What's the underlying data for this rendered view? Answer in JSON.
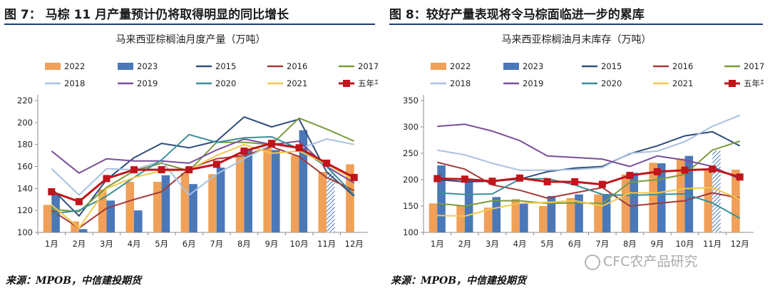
{
  "left": {
    "figure_title": "图 7：  马棕 11 月产量预计仍将取得明显的同比增长",
    "source": "来源：MPOB，中信建投期货"
  },
  "right": {
    "figure_title": "图 8：较好产量表现将令马棕面临进一步的累库",
    "source": "来源：MPOB，中信建投期货"
  },
  "watermark": "CFC农产品研究",
  "colors": {
    "2022": "#f0a058",
    "2023": "#4a78b8",
    "2015": "#2e4d7c",
    "2016": "#a33a3a",
    "2017": "#7a9b3c",
    "2018": "#a9c1e0",
    "2019": "#7a4e9a",
    "2020": "#3a8f97",
    "2021": "#f2c84a",
    "avg": "#c0151b",
    "rule": "#1f3c78"
  },
  "chart_data": [
    {
      "type": "bar",
      "title": "马来西亚棕榈油月度产量（万吨）",
      "categories": [
        "1月",
        "2月",
        "3月",
        "4月",
        "5月",
        "6月",
        "7月",
        "8月",
        "9月",
        "10月",
        "11月",
        "12月"
      ],
      "ylim": [
        100,
        220
      ],
      "yticks": [
        100,
        120,
        140,
        160,
        180,
        200,
        220
      ],
      "legend": [
        "2022",
        "2023",
        "2015",
        "2016",
        "2017",
        "2018",
        "2019",
        "2020",
        "2021",
        "五年平均"
      ],
      "bars": [
        {
          "name": "2022",
          "values": [
            125,
            110,
            139,
            146,
            146,
            154,
            153,
            169,
            177,
            170,
            155,
            162
          ]
        },
        {
          "name": "2023",
          "values": [
            135,
            103,
            129,
            120,
            152,
            144,
            159,
            176,
            175,
            193,
            155,
            null
          ]
        }
      ],
      "hatched_bar": {
        "series": "2023",
        "category": "11月"
      },
      "lines": [
        {
          "name": "2015",
          "values": [
            140,
            115,
            148,
            168,
            181,
            177,
            183,
            205,
            196,
            203,
            155,
            133
          ]
        },
        {
          "name": "2016",
          "values": [
            120,
            104,
            122,
            130,
            137,
            158,
            167,
            170,
            178,
            169,
            150,
            138
          ]
        },
        {
          "name": "2017",
          "values": [
            121,
            119,
            141,
            156,
            163,
            156,
            182,
            182,
            180,
            204,
            194,
            183
          ]
        },
        {
          "name": "2018",
          "values": [
            158,
            134,
            158,
            157,
            165,
            134,
            153,
            167,
            180,
            176,
            185,
            180
          ]
        },
        {
          "name": "2019",
          "values": [
            174,
            154,
            167,
            165,
            165,
            163,
            175,
            185,
            180,
            183,
            160,
            145
          ]
        },
        {
          "name": "2020",
          "values": [
            117,
            120,
            133,
            150,
            166,
            189,
            182,
            186,
            187,
            176,
            160,
            134
          ]
        },
        {
          "name": "2021",
          "values": [
            125,
            104,
            140,
            150,
            156,
            157,
            170,
            180,
            172,
            174,
            162,
            148
          ]
        },
        {
          "name": "五年平均",
          "values": [
            137,
            128,
            149,
            157,
            157,
            157,
            162,
            174,
            181,
            177,
            163,
            150
          ],
          "markers": true
        }
      ]
    },
    {
      "type": "bar",
      "title": "马来西亚棕榈油月末库存（万吨）",
      "categories": [
        "1月",
        "2月",
        "3月",
        "4月",
        "5月",
        "6月",
        "7月",
        "8月",
        "9月",
        "10月",
        "11月",
        "12月"
      ],
      "ylim": [
        100,
        350
      ],
      "yticks": [
        100,
        150,
        200,
        250,
        300,
        350
      ],
      "legend": [
        "2022",
        "2023",
        "2015",
        "2016",
        "2017",
        "2018",
        "2019",
        "2020",
        "2021",
        "五年平均"
      ],
      "bars": [
        {
          "name": "2022",
          "values": [
            155,
            151,
            147,
            163,
            150,
            165,
            172,
            210,
            232,
            240,
            220,
            219
          ]
        },
        {
          "name": "2023",
          "values": [
            227,
            200,
            167,
            155,
            169,
            172,
            173,
            213,
            231,
            245,
            255,
            null
          ]
        }
      ],
      "hatched_bar": {
        "series": "2023",
        "category": "11月"
      },
      "lines": [
        {
          "name": "2015",
          "values": [
            200,
            196,
            197,
            201,
            215,
            222,
            225,
            249,
            264,
            283,
            291,
            264
          ]
        },
        {
          "name": "2016",
          "values": [
            233,
            220,
            190,
            180,
            165,
            175,
            185,
            150,
            155,
            160,
            175,
            165
          ]
        },
        {
          "name": "2017",
          "values": [
            155,
            150,
            160,
            160,
            155,
            156,
            155,
            195,
            200,
            210,
            256,
            273
          ]
        },
        {
          "name": "2018",
          "values": [
            256,
            247,
            231,
            218,
            218,
            219,
            223,
            250,
            254,
            272,
            301,
            322
          ]
        },
        {
          "name": "2019",
          "values": [
            301,
            305,
            292,
            274,
            245,
            242,
            239,
            225,
            245,
            237,
            225,
            201
          ]
        },
        {
          "name": "2020",
          "values": [
            175,
            172,
            173,
            201,
            202,
            190,
            172,
            170,
            172,
            173,
            156,
            127
          ]
        },
        {
          "name": "2021",
          "values": [
            132,
            131,
            145,
            155,
            157,
            160,
            150,
            175,
            175,
            183,
            185,
            163
          ]
        },
        {
          "name": "五年平均",
          "values": [
            202,
            201,
            197,
            203,
            196,
            196,
            191,
            208,
            215,
            218,
            220,
            205
          ],
          "markers": true
        }
      ]
    }
  ]
}
